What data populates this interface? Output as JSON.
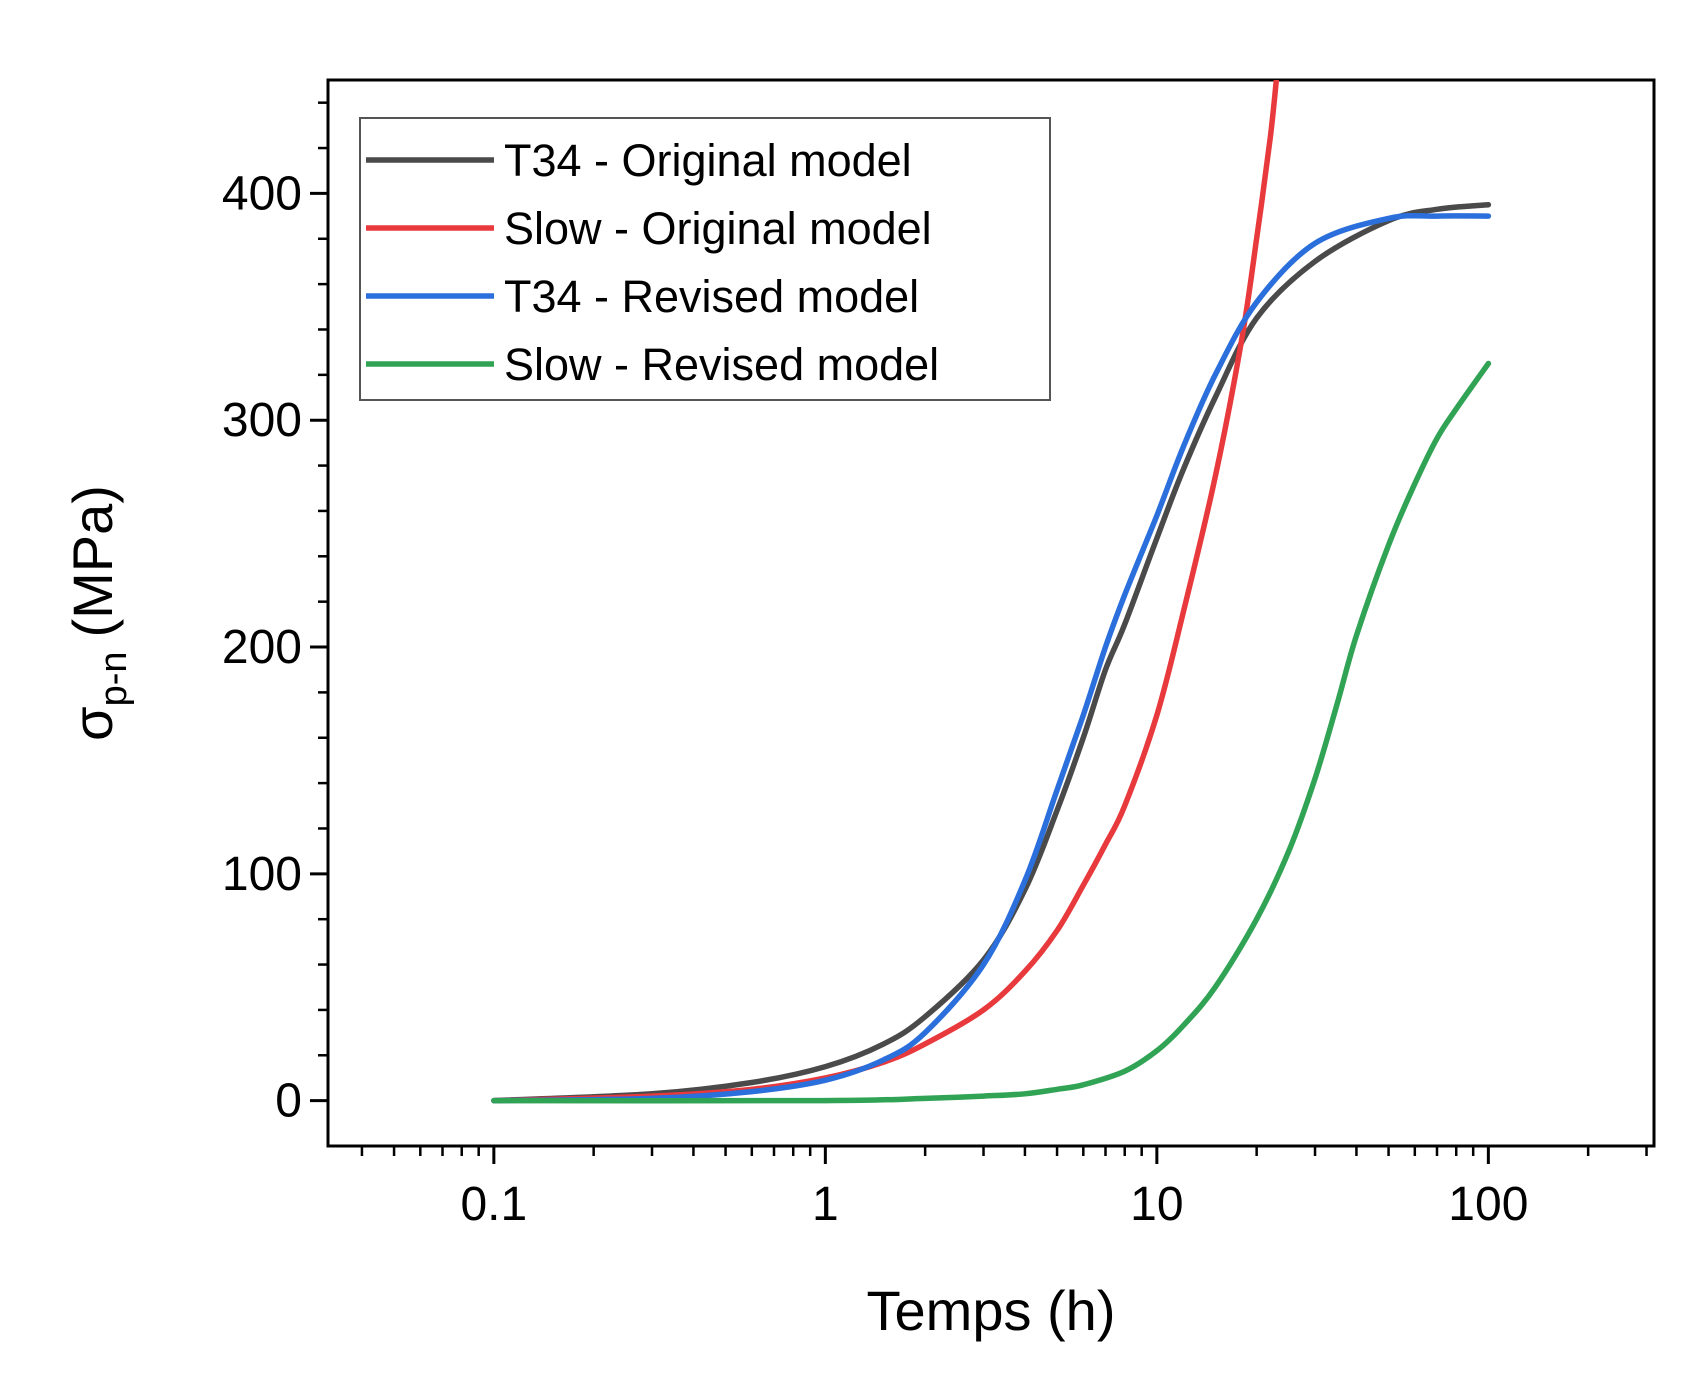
{
  "chart_data": {
    "type": "line",
    "title": "",
    "xlabel": "Temps (h)",
    "ylabel": {
      "main": "σ",
      "subscript": "p-n",
      "unit": "(MPa)"
    },
    "xscale": "log",
    "xlim": [
      0.0316,
      316
    ],
    "ylim": [
      -20,
      450
    ],
    "xticks": [
      0.1,
      1,
      10,
      100
    ],
    "xtick_labels": [
      "0.1",
      "1",
      "10",
      "100"
    ],
    "yticks": [
      0,
      100,
      200,
      300,
      400
    ],
    "ytick_labels": [
      "0",
      "100",
      "200",
      "300",
      "400"
    ],
    "grid": false,
    "legend_position": "top-left",
    "series": [
      {
        "name": "T34 - Original model",
        "color": "#4a4a4a",
        "x": [
          0.1,
          0.3,
          0.6,
          1,
          1.5,
          2,
          3,
          4,
          5,
          6,
          7,
          8,
          10,
          12,
          15,
          20,
          30,
          50,
          70,
          100
        ],
        "y": [
          0,
          3,
          8,
          15,
          25,
          37,
          62,
          93,
          128,
          160,
          190,
          210,
          248,
          278,
          310,
          345,
          370,
          388,
          393,
          395
        ]
      },
      {
        "name": "Slow - Original model",
        "color": "#e8393c",
        "x": [
          0.1,
          0.3,
          0.6,
          1,
          1.5,
          2,
          3,
          4,
          5,
          6,
          7,
          8,
          10,
          12,
          15,
          18,
          20,
          22,
          23
        ],
        "y": [
          0,
          2,
          5,
          10,
          17,
          25,
          40,
          57,
          75,
          95,
          113,
          130,
          170,
          215,
          275,
          335,
          380,
          425,
          452
        ]
      },
      {
        "name": "T34 - Revised model",
        "color": "#2a6fdb",
        "x": [
          0.1,
          0.3,
          0.6,
          1,
          1.5,
          2,
          3,
          4,
          5,
          6,
          7,
          8,
          10,
          12,
          15,
          20,
          30,
          50,
          70,
          100
        ],
        "y": [
          0,
          1,
          4,
          9,
          18,
          30,
          60,
          97,
          137,
          170,
          200,
          223,
          258,
          288,
          320,
          352,
          378,
          389,
          390,
          390
        ]
      },
      {
        "name": "Slow - Revised model",
        "color": "#31a354",
        "x": [
          0.1,
          1,
          2,
          3,
          4,
          5,
          6,
          8,
          10,
          12,
          15,
          20,
          25,
          30,
          35,
          40,
          50,
          60,
          70,
          80,
          100
        ],
        "y": [
          0,
          0,
          1,
          2,
          3,
          5,
          7,
          13,
          22,
          33,
          50,
          80,
          110,
          142,
          175,
          205,
          245,
          272,
          292,
          305,
          325
        ]
      }
    ]
  }
}
